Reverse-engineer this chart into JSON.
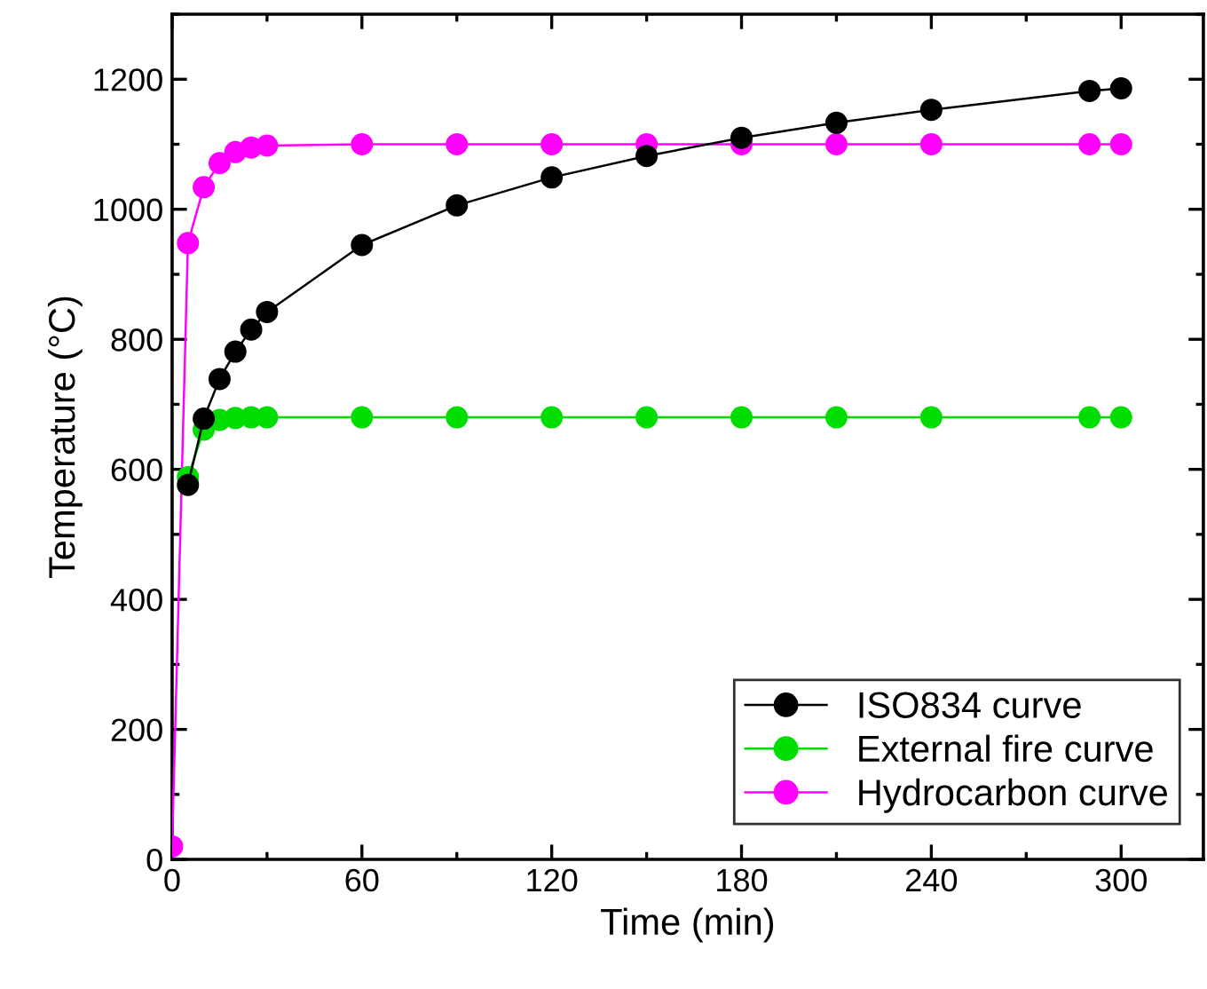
{
  "chart_data": {
    "type": "line",
    "xlabel": "Time (min)",
    "ylabel": "Temperature (°C)",
    "xlim": [
      0,
      326
    ],
    "xticks": [
      0,
      60,
      120,
      180,
      240,
      300
    ],
    "ylim": [
      0,
      1300
    ],
    "yticks": [
      0,
      200,
      400,
      600,
      800,
      1000,
      1200
    ],
    "x": [
      0,
      5,
      10,
      15,
      20,
      25,
      30,
      60,
      90,
      120,
      150,
      180,
      210,
      240,
      290,
      300
    ],
    "marker": "circle",
    "line_style": "solid",
    "grid": false,
    "legend": "bottom right",
    "series": [
      {
        "name": "ISO834 curve",
        "color": "#000000",
        "values": [
          null,
          576,
          678,
          739,
          781,
          815,
          842,
          945,
          1006,
          1049,
          1082,
          1110,
          1133,
          1153,
          1182,
          1186
        ]
      },
      {
        "name": "External fire curve",
        "color": "#00dd00",
        "values": [
          null,
          588,
          661,
          676,
          679,
          680,
          680,
          680,
          680,
          680,
          680,
          680,
          680,
          680,
          680,
          680
        ]
      },
      {
        "name": "Hydrocarbon curve",
        "color": "#ff00ff",
        "values": [
          20,
          948,
          1034,
          1071,
          1088,
          1095,
          1098,
          1100,
          1100,
          1100,
          1100,
          1100,
          1100,
          1100,
          1100,
          1100
        ]
      }
    ]
  }
}
